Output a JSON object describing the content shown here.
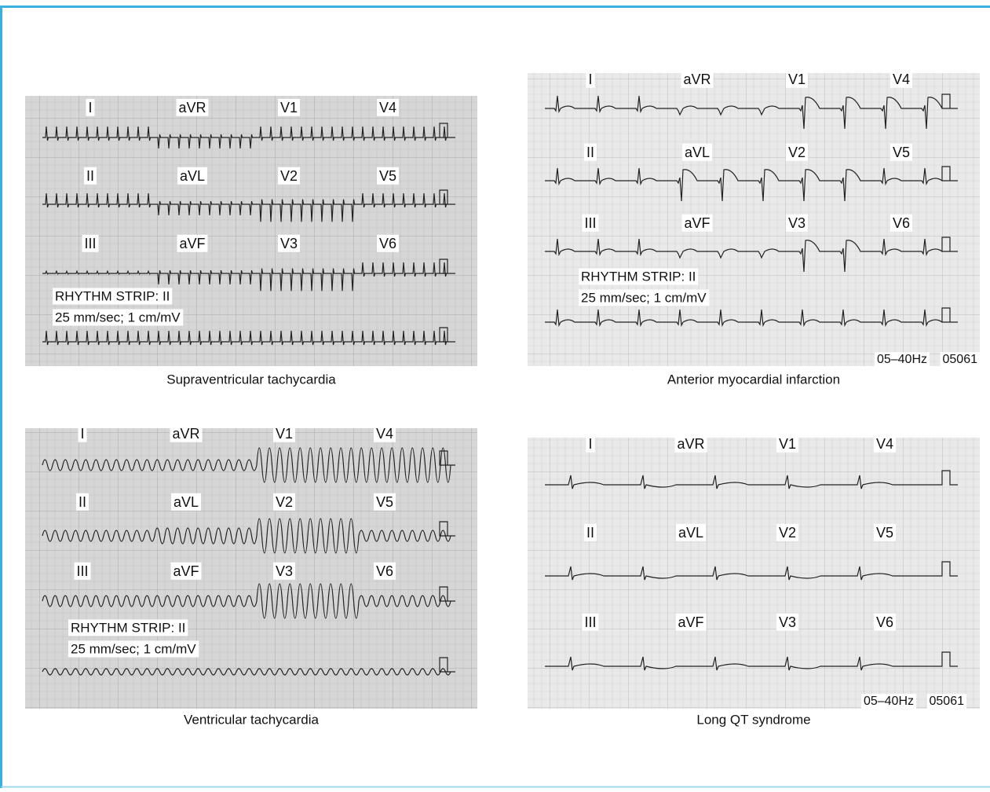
{
  "panels": [
    {
      "caption": "Supraventricular tachycardia",
      "leads": [
        [
          "I",
          "aVR",
          "V1",
          "V4"
        ],
        [
          "II",
          "aVL",
          "V2",
          "V5"
        ],
        [
          "III",
          "aVF",
          "V3",
          "V6"
        ]
      ],
      "rhythm_strip": "RHYTHM STRIP: II",
      "settings": "25 mm/sec; 1 cm/mV"
    },
    {
      "caption": "Anterior myocardial infarction",
      "leads": [
        [
          "I",
          "aVR",
          "V1",
          "V4"
        ],
        [
          "II",
          "aVL",
          "V2",
          "V5"
        ],
        [
          "III",
          "aVF",
          "V3",
          "V6"
        ]
      ],
      "rhythm_strip": "RHYTHM STRIP: II",
      "settings": "25 mm/sec; 1 cm/mV",
      "filter": "05–40Hz",
      "code": "05061"
    },
    {
      "caption": "Ventricular tachycardia",
      "leads": [
        [
          "I",
          "aVR",
          "V1",
          "V4"
        ],
        [
          "II",
          "aVL",
          "V2",
          "V5"
        ],
        [
          "III",
          "aVF",
          "V3",
          "V6"
        ]
      ],
      "rhythm_strip": "RHYTHM STRIP: II",
      "settings": "25 mm/sec; 1 cm/mV"
    },
    {
      "caption": "Long QT syndrome",
      "leads": [
        [
          "I",
          "aVR",
          "V1",
          "V4"
        ],
        [
          "II",
          "aVL",
          "V2",
          "V5"
        ],
        [
          "III",
          "aVF",
          "V3",
          "V6"
        ]
      ],
      "filter": "05–40Hz",
      "code": "05061"
    }
  ]
}
